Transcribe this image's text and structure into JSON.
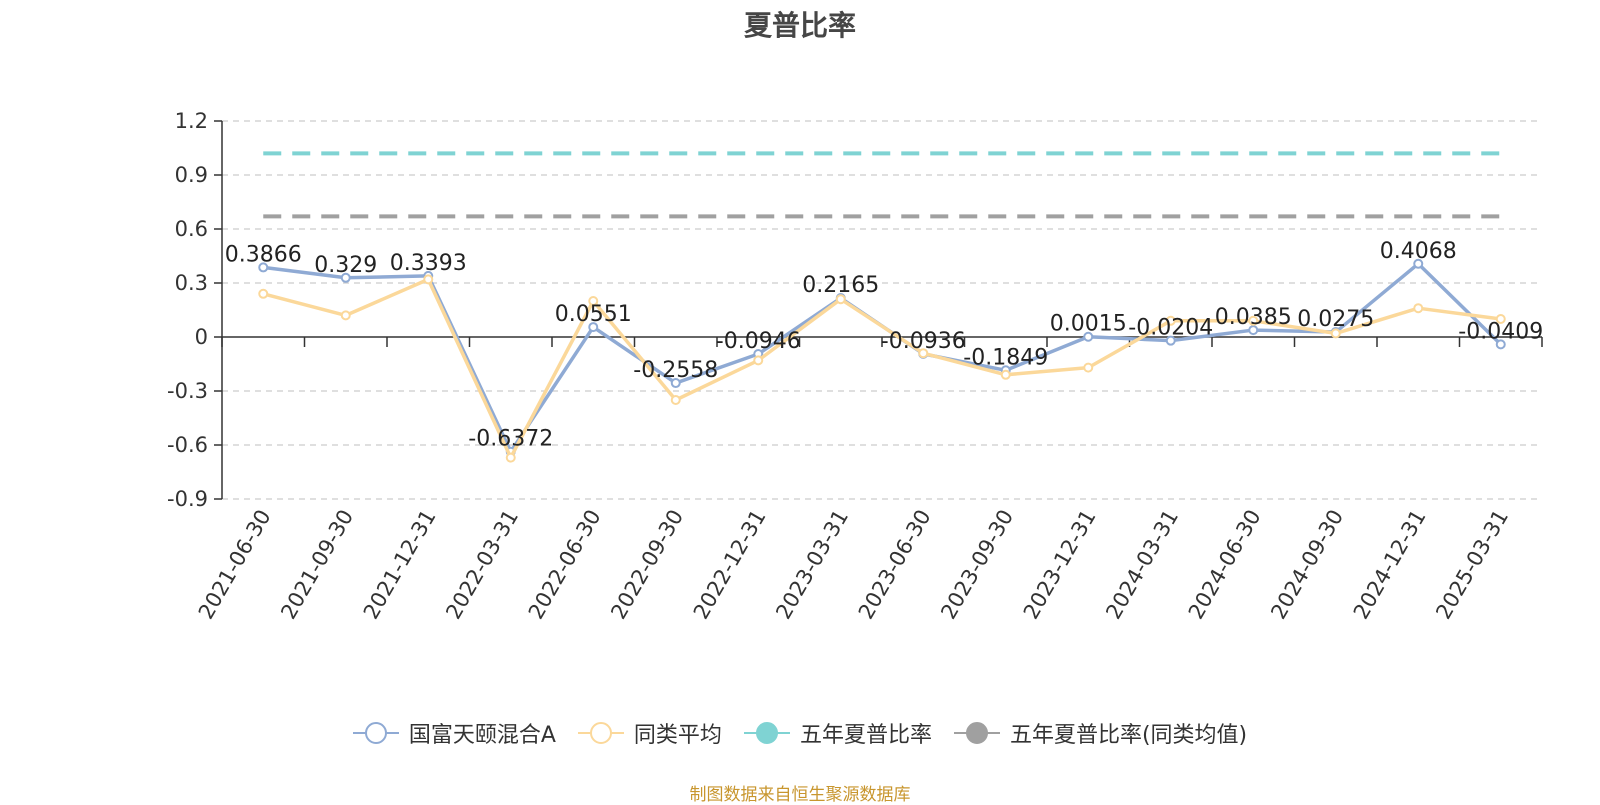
{
  "chart_data": {
    "type": "line",
    "title": "夏普比率",
    "categories": [
      "2021-06-30",
      "2021-09-30",
      "2021-12-31",
      "2022-03-31",
      "2022-06-30",
      "2022-09-30",
      "2022-12-31",
      "2023-03-31",
      "2023-06-30",
      "2023-09-30",
      "2023-12-31",
      "2024-03-31",
      "2024-06-30",
      "2024-09-30",
      "2024-12-31",
      "2025-03-31"
    ],
    "y_ticks": [
      "1.2",
      "0.9",
      "0.6",
      "0.3",
      "0",
      "-0.3",
      "-0.6",
      "-0.9"
    ],
    "ylim": [
      -0.9,
      1.2
    ],
    "grid": true,
    "legend_position": "bottom",
    "series": [
      {
        "name": "国富天颐混合A",
        "color": "#8faad4",
        "values": [
          0.3866,
          0.329,
          0.3393,
          -0.6372,
          0.0551,
          -0.2558,
          -0.0946,
          0.2165,
          -0.0936,
          -0.1849,
          0.0015,
          -0.0204,
          0.0385,
          0.0275,
          0.4068,
          -0.0409
        ],
        "labels": [
          "0.3866",
          "0.329",
          "0.3393",
          "-0.6372",
          "0.0551",
          "-0.2558",
          "-0.0946",
          "0.2165",
          "-0.0936",
          "-0.1849",
          "0.0015",
          "-0.0204",
          "0.0385",
          "0.0275",
          "0.4068",
          "-0.0409"
        ]
      },
      {
        "name": "同类平均",
        "color": "#fbd89a",
        "values": [
          0.24,
          0.12,
          0.32,
          -0.67,
          0.2,
          -0.35,
          -0.13,
          0.21,
          -0.09,
          -0.21,
          -0.17,
          0.09,
          0.09,
          0.02,
          0.16,
          0.1
        ]
      },
      {
        "name": "五年夏普比率",
        "color": "#7fd3d3",
        "dashed": true,
        "values_constant": 1.02
      },
      {
        "name": "五年夏普比率(同类均值)",
        "color": "#a0a0a0",
        "dashed": true,
        "values_constant": 0.67
      }
    ],
    "source": "制图数据来自恒生聚源数据库"
  }
}
